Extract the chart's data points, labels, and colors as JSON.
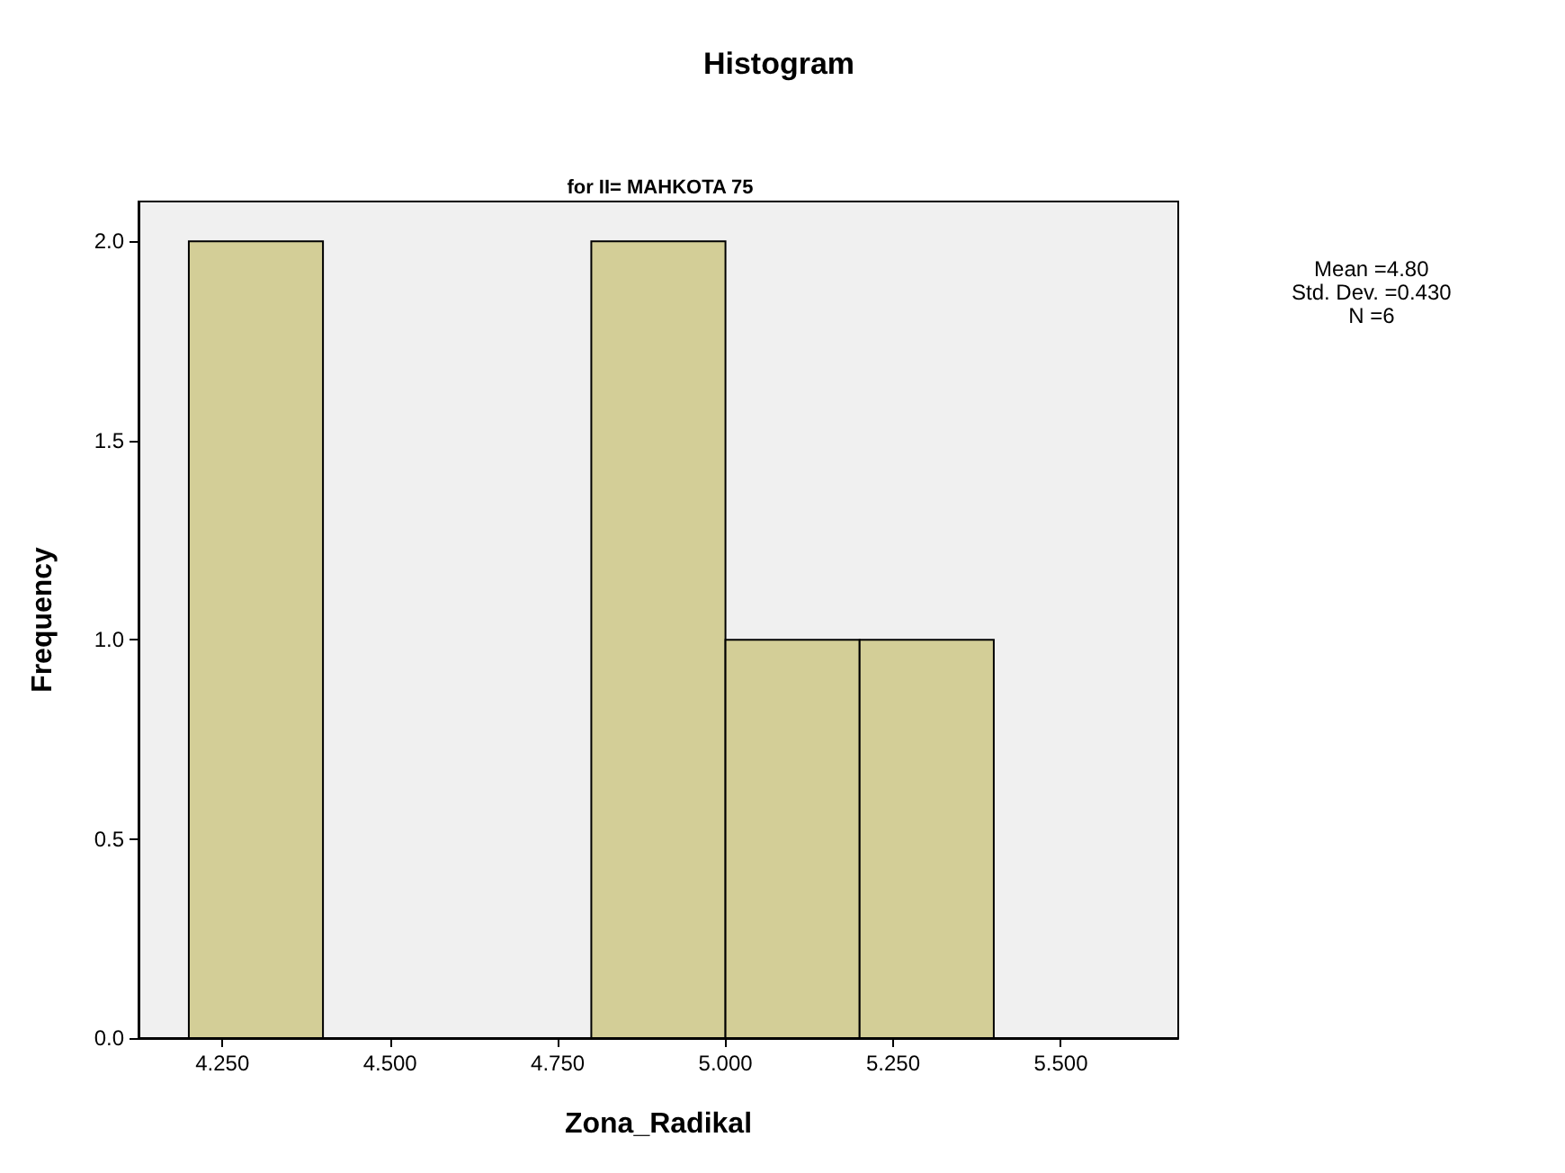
{
  "chart_data": {
    "type": "histogram",
    "title": "Histogram",
    "subtitle": "for II= MAHKOTA 75",
    "xlabel": "Zona_Radikal",
    "ylabel": "Frequency",
    "bins": [
      4.2,
      4.4,
      4.6,
      4.8,
      5.0,
      5.2,
      5.4
    ],
    "values": [
      2,
      0,
      0,
      2,
      1,
      1
    ],
    "color": "#d3ce97",
    "xlim": [
      4.125,
      5.675
    ],
    "xticks": [
      {
        "value": 4.25,
        "label": "4.250"
      },
      {
        "value": 4.5,
        "label": "4.500"
      },
      {
        "value": 4.75,
        "label": "4.750"
      },
      {
        "value": 5,
        "label": "5.000"
      },
      {
        "value": 5.25,
        "label": "5.250"
      },
      {
        "value": 5.5,
        "label": "5.500"
      }
    ],
    "ylim": [
      0,
      2.1
    ],
    "yticks": [
      {
        "value": 0,
        "label": "0.0"
      },
      {
        "value": 0.5,
        "label": "0.5"
      },
      {
        "value": 1,
        "label": "1.0"
      },
      {
        "value": 1.5,
        "label": "1.5"
      },
      {
        "value": 2,
        "label": "2.0"
      }
    ],
    "annotations": [
      "Mean =4.80",
      "Std. Dev. =0.430",
      "N =6"
    ],
    "grid": false
  }
}
